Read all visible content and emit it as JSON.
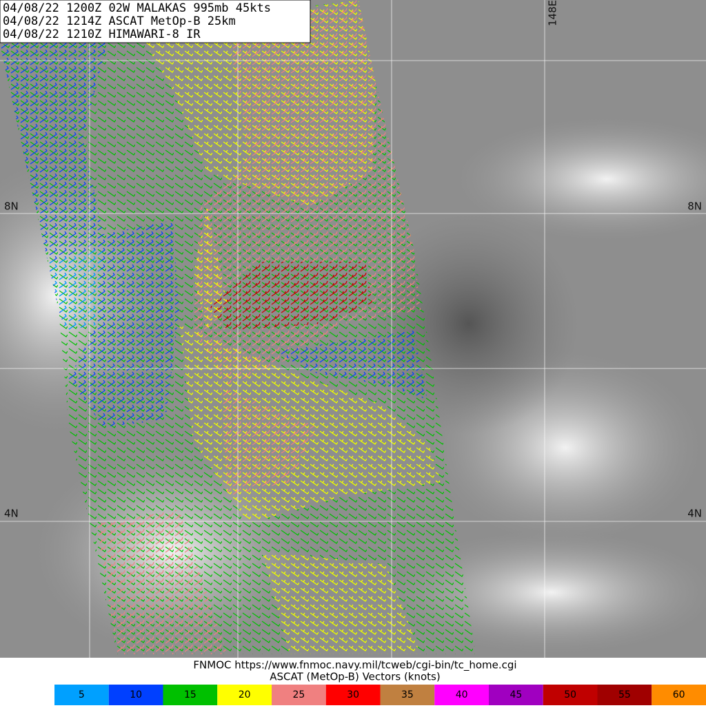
{
  "header": {
    "lines": [
      "04/08/22 1200Z  02W MALAKAS 995mb 45kts",
      "04/08/22 1214Z  ASCAT MetOp-B 25km",
      "04/08/22 1210Z  HIMAWARI-8 IR"
    ]
  },
  "map": {
    "lat_labels": [
      "8N",
      "4N"
    ],
    "lon_labels": [
      "148E"
    ]
  },
  "footer": {
    "lines": [
      "FNMOC https://www.fnmoc.navy.mil/tcweb/cgi-bin/tc_home.cgi",
      "ASCAT (MetOp-B) Vectors (knots)"
    ]
  },
  "legend": {
    "items": [
      {
        "value": 5,
        "color": "#00a0ff"
      },
      {
        "value": 10,
        "color": "#0040ff"
      },
      {
        "value": 15,
        "color": "#00c000"
      },
      {
        "value": 20,
        "color": "#ffff00"
      },
      {
        "value": 25,
        "color": "#f08080"
      },
      {
        "value": 30,
        "color": "#ff0000"
      },
      {
        "value": 35,
        "color": "#c08040"
      },
      {
        "value": 40,
        "color": "#ff00ff"
      },
      {
        "value": 45,
        "color": "#a000c0"
      },
      {
        "value": 50,
        "color": "#c00000"
      },
      {
        "value": 55,
        "color": "#a00000"
      },
      {
        "value": 60,
        "color": "#ff8c00"
      }
    ]
  }
}
